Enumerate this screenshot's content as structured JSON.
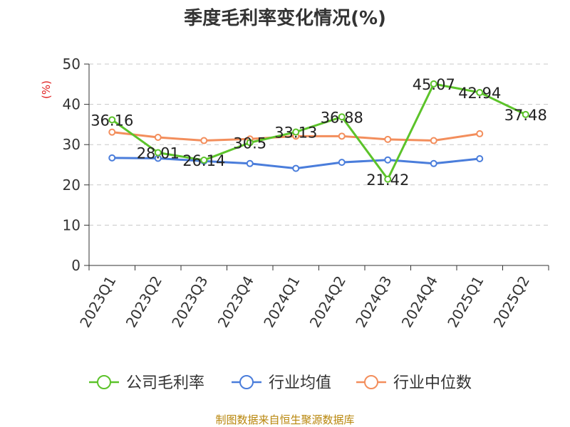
{
  "chart_data": {
    "type": "line",
    "title": "季度毛利率变化情况(%)",
    "ylabel": "(%)",
    "xlabel": "",
    "ylim": [
      0,
      50
    ],
    "yticks": [
      0,
      10,
      20,
      30,
      40,
      50
    ],
    "grid": true,
    "legend_position": "bottom",
    "categories": [
      "2023Q1",
      "2023Q2",
      "2023Q3",
      "2023Q4",
      "2024Q1",
      "2024Q2",
      "2024Q3",
      "2024Q4",
      "2025Q1",
      "2025Q2"
    ],
    "series": [
      {
        "name": "公司毛利率",
        "color": "#5cc32a",
        "values": [
          36.16,
          28.01,
          26.14,
          30.5,
          33.13,
          36.88,
          21.42,
          45.07,
          42.94,
          37.48
        ],
        "labels": [
          "36.16",
          "28.01",
          "26.14",
          "30.5",
          "33.13",
          "36.88",
          "21.42",
          "45.07",
          "42.94",
          "37.48"
        ]
      },
      {
        "name": "行业均值",
        "color": "#4a7ddb",
        "values": [
          26.7,
          26.6,
          25.9,
          25.3,
          24.1,
          25.6,
          26.2,
          25.3,
          26.5,
          null
        ]
      },
      {
        "name": "行业中位数",
        "color": "#f38e5c",
        "values": [
          33.1,
          31.8,
          31.0,
          31.4,
          32.1,
          32.1,
          31.3,
          31.0,
          32.7,
          null
        ]
      }
    ]
  },
  "footer": {
    "source": "制图数据来自恒生聚源数据库"
  }
}
